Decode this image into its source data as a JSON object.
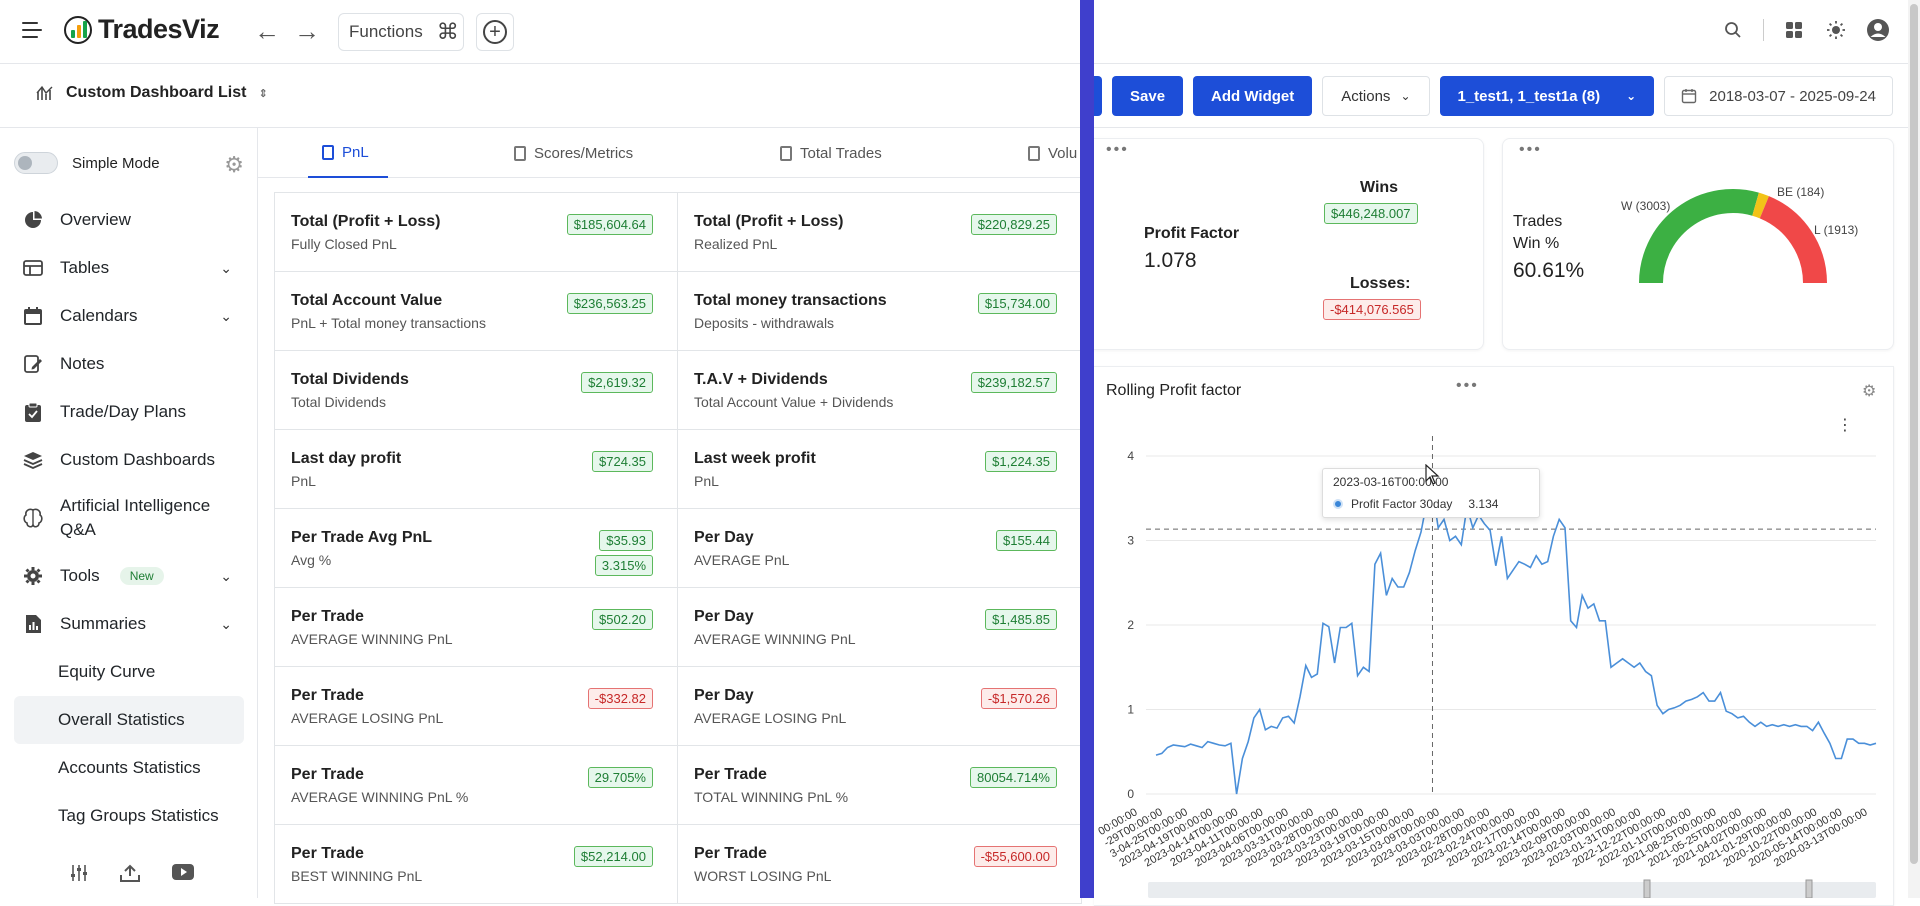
{
  "app": {
    "name": "TradesViz"
  },
  "topbar": {
    "functions_label": "Functions"
  },
  "dashboard": {
    "title": "Custom Dashboard List",
    "save_label": "Save",
    "add_widget_label": "Add Widget",
    "actions_label": "Actions",
    "account_select": "1_test1, 1_test1a (8)",
    "date_range": "2018-03-07 - 2025-09-24"
  },
  "sidebar": {
    "simple_mode": "Simple Mode",
    "items": [
      {
        "label": "Overview"
      },
      {
        "label": "Tables"
      },
      {
        "label": "Calendars"
      },
      {
        "label": "Notes"
      },
      {
        "label": "Trade/Day Plans"
      },
      {
        "label": "Custom Dashboards"
      },
      {
        "label": "Artificial Intelligence Q&A"
      },
      {
        "label": "Tools",
        "badge": "New"
      },
      {
        "label": "Summaries"
      }
    ],
    "sub_items": [
      {
        "label": "Equity Curve"
      },
      {
        "label": "Overall Statistics"
      },
      {
        "label": "Accounts Statistics"
      },
      {
        "label": "Tag Groups Statistics"
      }
    ]
  },
  "tabs": [
    {
      "label": "PnL"
    },
    {
      "label": "Scores/Metrics"
    },
    {
      "label": "Total Trades"
    },
    {
      "label": "Volu"
    }
  ],
  "stats": [
    [
      {
        "title": "Total (Profit + Loss)",
        "sub": "Fully Closed PnL",
        "value": "$185,604.64",
        "tone": "pos"
      },
      {
        "title": "Total (Profit + Loss)",
        "sub": "Realized PnL",
        "value": "$220,829.25",
        "tone": "pos"
      }
    ],
    [
      {
        "title": "Total Account Value",
        "sub": "PnL + Total money transactions",
        "value": "$236,563.25",
        "tone": "pos"
      },
      {
        "title": "Total money transactions",
        "sub": "Deposits - withdrawals",
        "value": "$15,734.00",
        "tone": "pos"
      }
    ],
    [
      {
        "title": "Total Dividends",
        "sub": "Total Dividends",
        "value": "$2,619.32",
        "tone": "pos"
      },
      {
        "title": "T.A.V + Dividends",
        "sub": "Total Account Value + Dividends",
        "value": "$239,182.57",
        "tone": "pos"
      }
    ],
    [
      {
        "title": "Last day profit",
        "sub": "PnL",
        "value": "$724.35",
        "tone": "pos"
      },
      {
        "title": "Last week profit",
        "sub": "PnL",
        "value": "$1,224.35",
        "tone": "pos"
      }
    ],
    [
      {
        "title": "Per Trade Avg PnL",
        "sub": "Avg %",
        "value": "$35.93",
        "value2": "3.315%",
        "tone": "pos"
      },
      {
        "title": "Per Day",
        "sub": "AVERAGE PnL",
        "value": "$155.44",
        "tone": "pos"
      }
    ],
    [
      {
        "title": "Per Trade",
        "sub": "AVERAGE WINNING PnL",
        "value": "$502.20",
        "tone": "pos"
      },
      {
        "title": "Per Day",
        "sub": "AVERAGE WINNING PnL",
        "value": "$1,485.85",
        "tone": "pos"
      }
    ],
    [
      {
        "title": "Per Trade",
        "sub": "AVERAGE LOSING PnL",
        "value": "-$332.82",
        "tone": "neg"
      },
      {
        "title": "Per Day",
        "sub": "AVERAGE LOSING PnL",
        "value": "-$1,570.26",
        "tone": "neg"
      }
    ],
    [
      {
        "title": "Per Trade",
        "sub": "AVERAGE WINNING PnL %",
        "value": "29.705%",
        "tone": "pos"
      },
      {
        "title": "Per Trade",
        "sub": "TOTAL WINNING PnL %",
        "value": "80054.714%",
        "tone": "pos"
      }
    ],
    [
      {
        "title": "Per Trade",
        "sub": "BEST WINNING PnL",
        "value": "$52,214.00",
        "tone": "pos"
      },
      {
        "title": "Per Trade",
        "sub": "WORST LOSING PnL",
        "value": "-$55,600.00",
        "tone": "neg"
      }
    ]
  ],
  "profit_factor_widget": {
    "label": "Profit Factor",
    "value": "1.078",
    "wins_label": "Wins",
    "wins_value": "$446,248.007",
    "losses_label": "Losses:",
    "losses_value": "-$414,076.565"
  },
  "winrate_widget": {
    "trades_label": "Trades",
    "win_label": "Win %",
    "value": "60.61%",
    "w_label": "W (3003)",
    "be_label": "BE (184)",
    "l_label": "L (1913)"
  },
  "colors": {
    "win": "#3cb043",
    "be": "#f2c318",
    "loss": "#f04848",
    "accent": "#1d4ed8",
    "line": "#4a8fd9"
  },
  "rolling_chart": {
    "title": "Rolling Profit factor",
    "tooltip_date": "2023-03-16T00:00:00",
    "tooltip_series": "Profit Factor 30day",
    "tooltip_value": "3.134"
  },
  "chart_data": {
    "type": "line",
    "title": "Rolling Profit factor",
    "ylim": [
      0,
      4
    ],
    "yticks": [
      0,
      1,
      2,
      3,
      4
    ],
    "grid": true,
    "reference_line": 3.134,
    "series": [
      {
        "name": "Profit Factor 30day",
        "values": [
          0.46,
          0.48,
          0.55,
          0.58,
          0.57,
          0.56,
          0.59,
          0.57,
          0.55,
          0.62,
          0.6,
          0.58,
          0.57,
          0.6,
          0.0,
          0.42,
          0.62,
          0.9,
          1.0,
          0.76,
          0.8,
          0.78,
          0.9,
          0.92,
          0.84,
          1.15,
          1.52,
          1.38,
          1.42,
          2.02,
          1.98,
          1.55,
          1.97,
          1.97,
          2.02,
          1.4,
          1.5,
          1.45,
          2.72,
          2.85,
          2.35,
          2.55,
          2.45,
          2.45,
          2.62,
          2.88,
          3.1,
          3.45,
          3.6,
          3.15,
          3.25,
          3.0,
          3.05,
          2.95,
          3.4,
          3.15,
          3.3,
          3.2,
          3.12,
          2.7,
          3.05,
          2.55,
          2.65,
          2.75,
          2.72,
          2.68,
          2.82,
          2.72,
          2.75,
          3.05,
          3.25,
          3.15,
          2.05,
          1.97,
          2.35,
          2.2,
          2.25,
          2.05,
          2.05,
          1.5,
          1.55,
          1.6,
          1.55,
          1.5,
          1.55,
          1.45,
          1.4,
          1.05,
          0.95,
          1.0,
          1.02,
          1.05,
          1.1,
          1.12,
          1.15,
          1.2,
          1.1,
          1.1,
          1.2,
          0.98,
          0.95,
          0.9,
          0.92,
          0.85,
          0.8,
          0.85,
          0.8,
          0.82,
          0.8,
          0.82,
          0.8,
          0.82,
          0.8,
          0.8,
          0.75,
          0.85,
          0.72,
          0.6,
          0.42,
          0.42,
          0.65,
          0.65,
          0.6,
          0.6,
          0.58,
          0.6
        ]
      }
    ],
    "x_tick_labels": [
      "00:00:00",
      "-29T00:00:00",
      "3-04-25T00:00:00",
      "2023-04-19T00:00:00",
      "2023-04-14T00:00:00",
      "2023-04-11T00:00:00",
      "2023-04-06T00:00:00",
      "2023-03-31T00:00:00",
      "2023-03-28T00:00:00",
      "2023-03-23T00:00:00",
      "2023-03-19T00:00:00",
      "2023-03-15T00:00:00",
      "2023-03-09T00:00:00",
      "2023-03-03T00:00:00",
      "2023-02-28T00:00:00",
      "2023-02-24T00:00:00",
      "2023-02-17T00:00:00",
      "2023-02-14T00:00:00",
      "2023-02-09T00:00:00",
      "2023-02-03T00:00:00",
      "2023-01-31T00:00:00",
      "2022-12-22T00:00:00",
      "2022-01-10T00:00:00",
      "2021-08-25T00:00:00",
      "2021-05-25T00:00:00",
      "2021-04-02T00:00:00",
      "2021-01-29T00:00:00",
      "2020-10-22T00:00:00",
      "2020-05-14T00:00:00",
      "2020-03-13T00:00:00"
    ]
  }
}
